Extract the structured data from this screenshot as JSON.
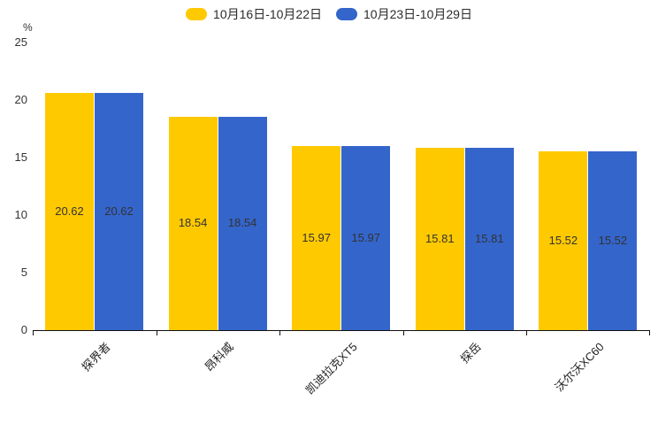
{
  "legend": {
    "items": [
      {
        "label": "10月16日-10月22日",
        "color": "#FFC900"
      },
      {
        "label": "10月23日-10月29日",
        "color": "#3465CB"
      }
    ]
  },
  "y_axis": {
    "unit_label": "%",
    "ticks": [
      0,
      5,
      10,
      15,
      20,
      25
    ]
  },
  "chart_data": {
    "type": "bar",
    "title": "",
    "categories": [
      "探界者",
      "昂科威",
      "凯迪拉克XT5",
      "探岳",
      "沃尔沃XC60"
    ],
    "series": [
      {
        "name": "10月16日-10月22日",
        "color": "#FFC900",
        "values": [
          20.62,
          18.54,
          15.97,
          15.81,
          15.52
        ]
      },
      {
        "name": "10月23日-10月29日",
        "color": "#3465CB",
        "values": [
          20.62,
          18.54,
          15.97,
          15.81,
          15.52
        ]
      }
    ],
    "xlabel": "",
    "ylabel": "%",
    "ylim": [
      0,
      25
    ],
    "grid": false,
    "legend_position": "top-center",
    "value_labels": "inside-center",
    "value_label_color": "#333333",
    "x_label_rotation_deg": 45
  }
}
